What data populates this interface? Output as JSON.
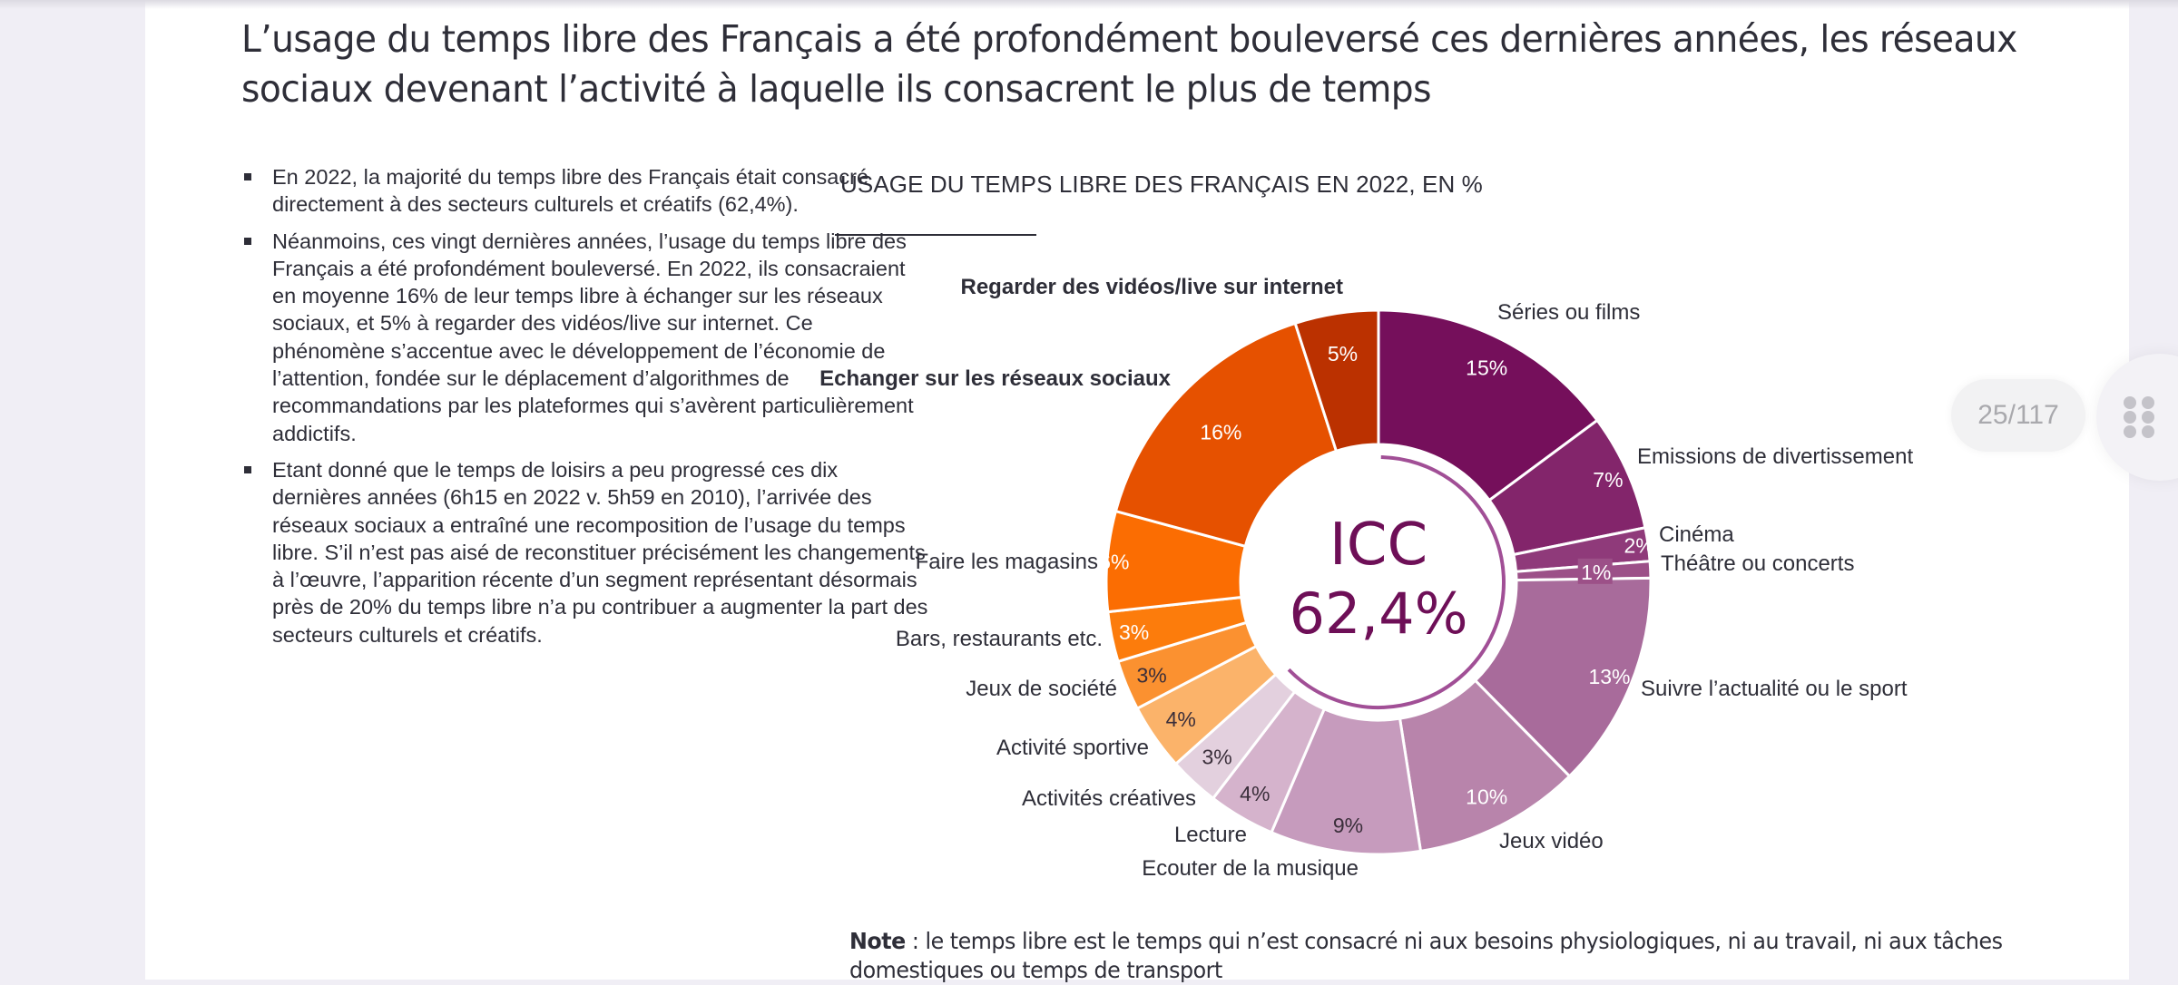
{
  "page": {
    "title": "L’usage du temps libre des Français a été profondément bouleversé ces dernières années, les réseaux sociaux devenant l’activité à laquelle ils consacrent le plus de temps",
    "bullets": [
      "En 2022, la majorité du temps libre des Français était consacré directement à des secteurs culturels et créatifs (62,4%).",
      "Néanmoins, ces vingt dernières années, l’usage du temps libre des Français a été profondément bouleversé. En 2022, ils consacraient en moyenne 16% de leur temps libre à échanger sur les réseaux sociaux, et 5% à regarder des vidéos/live sur internet. Ce phénomène s’accentue avec le développement de l’économie de l’attention, fondée sur le déplacement d’algorithmes de recommandations par les plateformes qui s’avèrent particulièrement addictifs.",
      "Etant donné que le temps de loisirs a peu progressé ces dix dernières années (6h15 en 2022 v. 5h59 en 2010), l’arrivée des réseaux sociaux a entraîné une recomposition de l’usage du temps libre. S’il n’est pas aisé de reconstituer précisément les changements à l’œuvre, l’apparition récente d’un segment représentant désormais près de 20% du temps libre n’a pu contribuer a augmenter la part des secteurs culturels et créatifs."
    ],
    "note_label": "Note",
    "note_text": " : le temps libre est le temps qui n’est consacré ni aux besoins physiologiques, ni au travail, ni aux tâches domestiques ou temps de transport"
  },
  "viewer": {
    "page_counter": "25/117",
    "grid_icon": "grid-dots-icon"
  },
  "chart_data": {
    "type": "pie",
    "variant": "donut",
    "title": "USAGE DU TEMPS LIBRE DES FRANÇAIS EN 2022, EN %",
    "center_label": "ICC",
    "center_value": "62,4%",
    "center_arc_color": "#a14f96",
    "slices": [
      {
        "name": "Séries ou films",
        "value": 15,
        "label": "15%",
        "color": "#750f5b",
        "label_color": "#ffffff",
        "bold": false
      },
      {
        "name": "Emissions de divertissement",
        "value": 7,
        "label": "7%",
        "color": "#83256b",
        "label_color": "#ffffff",
        "bold": false
      },
      {
        "name": "Cinéma",
        "value": 2,
        "label": "2%",
        "color": "#8f3a7a",
        "label_color": "#ffffff",
        "bold": false
      },
      {
        "name": "Théâtre ou concerts",
        "value": 1,
        "label": "1%",
        "color": "#9c5088",
        "label_color": "#ffffff",
        "bold": false
      },
      {
        "name": "Suivre l’actualité ou le sport",
        "value": 13,
        "label": "13%",
        "color": "#a86b9b",
        "label_color": "#ffffff",
        "bold": false
      },
      {
        "name": "Jeux vidéo",
        "value": 10,
        "label": "10%",
        "color": "#b884ab",
        "label_color": "#ffffff",
        "bold": false
      },
      {
        "name": "Ecouter de la musique",
        "value": 9,
        "label": "9%",
        "color": "#c69bbd",
        "label_color": "#3a2e3a",
        "bold": false
      },
      {
        "name": "Lecture",
        "value": 4,
        "label": "4%",
        "color": "#d5b3cc",
        "label_color": "#3a2e3a",
        "bold": false
      },
      {
        "name": "Activités créatives",
        "value": 3,
        "label": "3%",
        "color": "#e3d0de",
        "label_color": "#3a2e3a",
        "bold": false
      },
      {
        "name": "Activité sportive",
        "value": 4,
        "label": "4%",
        "color": "#fbb36a",
        "label_color": "#3a2e3a",
        "bold": false
      },
      {
        "name": "Jeux de société",
        "value": 3,
        "label": "3%",
        "color": "#fb9130",
        "label_color": "#3a2e3a",
        "bold": false
      },
      {
        "name": "Bars, restaurants etc.",
        "value": 3,
        "label": "3%",
        "color": "#fc7c0c",
        "label_color": "#ffffff",
        "bold": false
      },
      {
        "name": "Faire les magasins",
        "value": 6,
        "label": "6%",
        "color": "#fb6d02",
        "label_color": "#ffffff",
        "bold": false
      },
      {
        "name": "Echanger sur les réseaux sociaux",
        "value": 16,
        "label": "16%",
        "color": "#e65100",
        "label_color": "#ffffff",
        "bold": true
      },
      {
        "name": "Regarder des vidéos/live sur internet",
        "value": 5,
        "label": "5%",
        "color": "#bb3100",
        "label_color": "#ffffff",
        "bold": true
      }
    ],
    "legend": "none (category labels placed outside each slice)"
  }
}
